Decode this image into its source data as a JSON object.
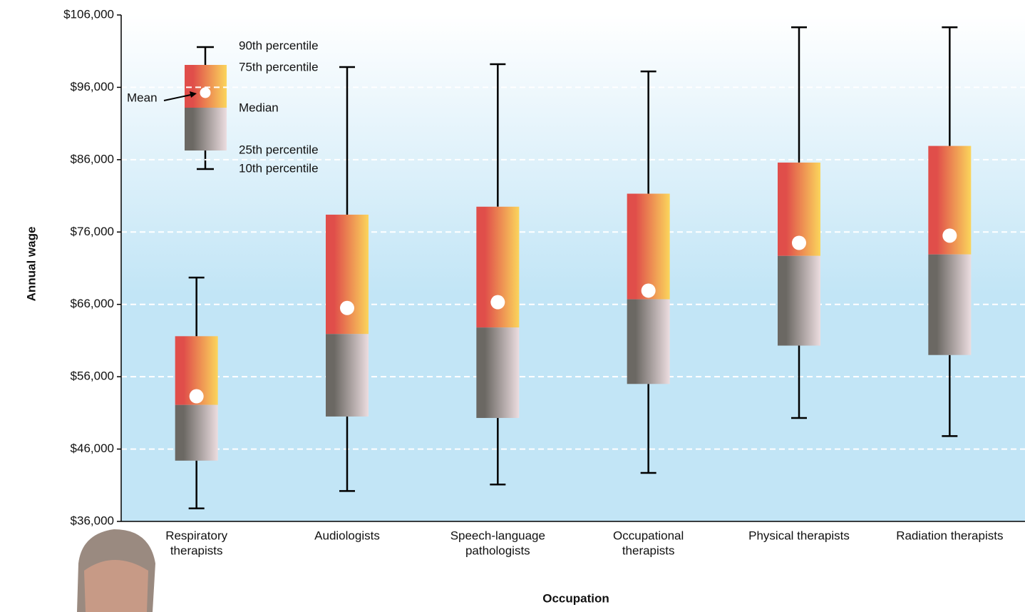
{
  "chart_data": {
    "type": "box",
    "x_label": "Occupation",
    "y_label": "Annual wage",
    "categories": [
      [
        "Respiratory",
        "therapists"
      ],
      [
        "Audiologists"
      ],
      [
        "Speech-language",
        "pathologists"
      ],
      [
        "Occupational",
        "therapists"
      ],
      [
        "Physical therapists"
      ],
      [
        "Radiation therapists"
      ]
    ],
    "p10": [
      37800,
      40200,
      41100,
      42700,
      50300,
      47800
    ],
    "p25": [
      44400,
      50500,
      50300,
      55000,
      60300,
      59000
    ],
    "median": [
      52100,
      61900,
      62800,
      66700,
      72700,
      72900
    ],
    "p75": [
      61600,
      78400,
      79500,
      81300,
      85600,
      87900
    ],
    "p90": [
      69700,
      98800,
      99200,
      98200,
      104300,
      104300
    ],
    "mean": [
      53300,
      65500,
      66300,
      67900,
      74500,
      75500
    ],
    "ylim": [
      36000,
      106000
    ],
    "yticks": [
      {
        "value": 36000,
        "label": "$36,000"
      },
      {
        "value": 46000,
        "label": "$46,000"
      },
      {
        "value": 56000,
        "label": "$56,000"
      },
      {
        "value": 66000,
        "label": "$66,000"
      },
      {
        "value": 76000,
        "label": "$76,000"
      },
      {
        "value": 86000,
        "label": "$86,000"
      },
      {
        "value": 96000,
        "label": "$96,000"
      },
      {
        "value": 106000,
        "label": "$106,000"
      }
    ],
    "grid": true,
    "legend": {
      "p90": "90th percentile",
      "p75": "75th percentile",
      "median": "Median",
      "p25": "25th percentile",
      "p10": "10th percentile",
      "mean": "Mean"
    },
    "colors": {
      "upper_box": [
        "#e04e4a",
        "#fbd55c"
      ],
      "lower_box": [
        "#6b6863",
        "#ecdde0"
      ],
      "mean": "#ffffff",
      "background": [
        "#ffffff",
        "#c2e5f6"
      ]
    }
  }
}
